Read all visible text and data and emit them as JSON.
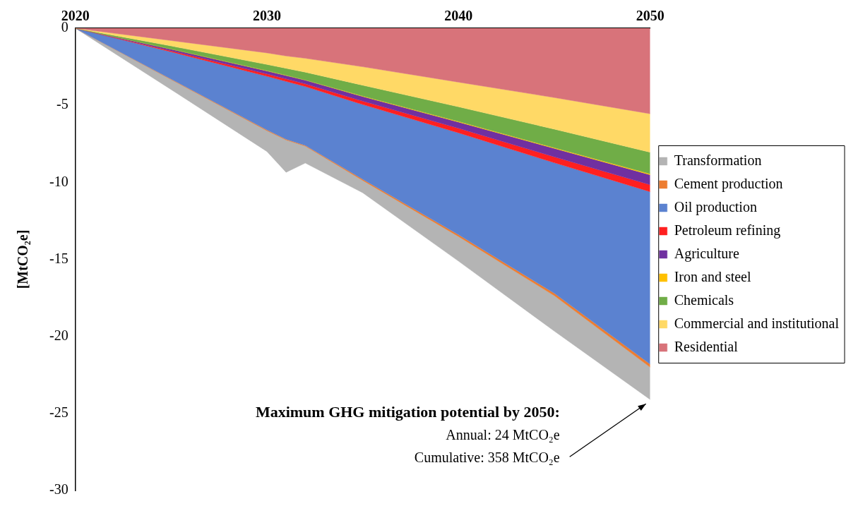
{
  "chart_data": {
    "type": "area",
    "stacked": true,
    "ylabel": "[MtCO₂e]",
    "x": [
      2020,
      2025,
      2030,
      2031,
      2032,
      2035,
      2040,
      2045,
      2050
    ],
    "xlim": [
      2020,
      2050
    ],
    "xticks": [
      2020,
      2030,
      2040,
      2050
    ],
    "ylim": [
      -30,
      0
    ],
    "yticks": [
      0,
      -5,
      -10,
      -15,
      -20,
      -25,
      -30
    ],
    "grid": false,
    "legend": "right",
    "series": [
      {
        "name": "Residential",
        "color": "#d8737a",
        "values": [
          0,
          -0.8,
          -1.6,
          -1.8,
          -1.95,
          -2.5,
          -3.5,
          -4.5,
          -5.55
        ]
      },
      {
        "name": "Commercial and institutional",
        "color": "#ffd966",
        "values": [
          0,
          -0.35,
          -0.75,
          -0.8,
          -0.9,
          -1.2,
          -1.6,
          -2.05,
          -2.5
        ]
      },
      {
        "name": "Chemicals",
        "color": "#70ad47",
        "values": [
          0,
          -0.2,
          -0.4,
          -0.45,
          -0.5,
          -0.7,
          -0.95,
          -1.2,
          -1.4
        ]
      },
      {
        "name": "Iron and steel",
        "color": "#ffc000",
        "values": [
          0,
          -0.01,
          -0.02,
          -0.02,
          -0.02,
          -0.03,
          -0.04,
          -0.05,
          -0.06
        ]
      },
      {
        "name": "Agriculture",
        "color": "#7030a0",
        "values": [
          0,
          -0.1,
          -0.2,
          -0.22,
          -0.24,
          -0.3,
          -0.4,
          -0.55,
          -0.65
        ]
      },
      {
        "name": "Petroleum refining",
        "color": "#ff2020",
        "values": [
          0,
          -0.07,
          -0.15,
          -0.16,
          -0.17,
          -0.22,
          -0.3,
          -0.38,
          -0.45
        ]
      },
      {
        "name": "Oil production",
        "color": "#5b82d0",
        "values": [
          0,
          -1.77,
          -3.48,
          -3.75,
          -3.82,
          -4.85,
          -6.61,
          -8.47,
          -11.19
        ]
      },
      {
        "name": "Cement production",
        "color": "#ed7d31",
        "values": [
          0,
          -0.03,
          -0.05,
          -0.05,
          -0.05,
          -0.08,
          -0.12,
          -0.16,
          -0.2
        ]
      },
      {
        "name": "Transformation",
        "color": "#b4b4b4",
        "values": [
          0,
          -0.65,
          -1.35,
          -2.1,
          -1.1,
          -0.8,
          -1.6,
          -2.3,
          -2.1
        ]
      }
    ],
    "annotations": [
      "Maximum GHG mitigation potential by 2050:",
      "Annual: 24 MtCO₂e",
      {
        "text": "Cumulative: 358 MtCO₂e",
        "x": 2050,
        "y": -24.1
      }
    ]
  }
}
